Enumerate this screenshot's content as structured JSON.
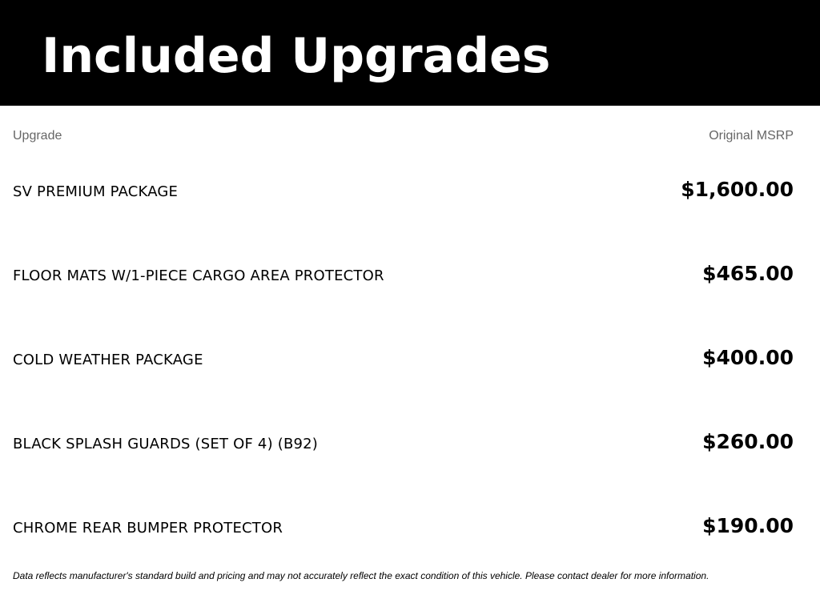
{
  "header": {
    "title": "Included Upgrades"
  },
  "columns": {
    "upgrade": "Upgrade",
    "msrp": "Original MSRP"
  },
  "rows": [
    {
      "name": "SV PREMIUM PACKAGE",
      "price": "$1,600.00"
    },
    {
      "name": "FLOOR MATS W/1-PIECE CARGO AREA PROTECTOR",
      "price": "$465.00"
    },
    {
      "name": "COLD WEATHER PACKAGE",
      "price": "$400.00"
    },
    {
      "name": "BLACK SPLASH GUARDS (SET OF 4) (B92)",
      "price": "$260.00"
    },
    {
      "name": "CHROME REAR BUMPER PROTECTOR",
      "price": "$190.00"
    }
  ],
  "disclaimer": "Data reflects manufacturer's standard build and pricing and may not accurately reflect the exact condition of this vehicle. Please contact dealer for more information."
}
